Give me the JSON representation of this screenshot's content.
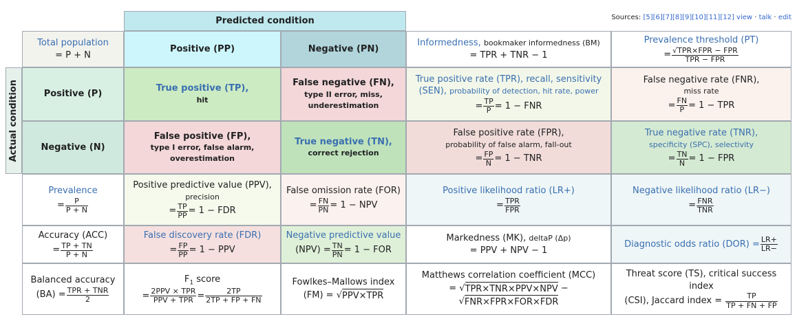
{
  "sources": {
    "label": "Sources:",
    "refs": "[5][6][7][8][9][10][11][12]",
    "view": "view",
    "talk": "talk",
    "edit": "edit"
  },
  "predicted_condition": "Predicted condition",
  "actual_condition": "Actual condition",
  "total_population": {
    "title": "Total population",
    "formula": "= P + N"
  },
  "pred_positive": "Positive (PP)",
  "pred_negative": "Negative (PN)",
  "informedness": {
    "title": "Informedness,",
    "sub": "bookmaker informedness (BM)",
    "formula": "= TPR + TNR − 1"
  },
  "prevalence_threshold": {
    "title": "Prevalence threshold (PT)",
    "lhs": "=",
    "num": "√TPR×FPR − FPR",
    "den": "TPR − FPR"
  },
  "actual_positive": "Positive (P)",
  "actual_negative": "Negative (N)",
  "tp": {
    "title": "True positive (TP),",
    "sub": "hit"
  },
  "fn": {
    "title": "False negative (FN),",
    "sub": "type II error, miss, underestimation"
  },
  "tpr": {
    "title": "True positive rate (TPR), recall, sensitivity",
    "title2": "(SEN),",
    "sub": "probability of detection, hit rate, power",
    "lhs": "=",
    "num": "TP",
    "den": "P",
    "rhs": "= 1 − FNR"
  },
  "fnr": {
    "title": "False negative rate (FNR),",
    "sub": "miss rate",
    "lhs": "=",
    "num": "FN",
    "den": "P",
    "rhs": "= 1 − TPR"
  },
  "fp": {
    "title": "False positive (FP),",
    "sub": "type I error, false alarm, overestimation"
  },
  "tn": {
    "title": "True negative (TN),",
    "sub": "correct rejection"
  },
  "fpr": {
    "title": "False positive rate (FPR),",
    "sub": "probability of false alarm, fall-out",
    "lhs": "=",
    "num": "FP",
    "den": "N",
    "rhs": "= 1 − TNR"
  },
  "tnr": {
    "title": "True negative rate (TNR),",
    "sub": "specificity (SPC), selectivity",
    "lhs": "=",
    "num": "TN",
    "den": "N",
    "rhs": "= 1 − FPR"
  },
  "prevalence": {
    "title": "Prevalence",
    "lhs": "=",
    "num": "P",
    "den": "P + N"
  },
  "ppv": {
    "title": "Positive predictive value (PPV),",
    "sub": "precision",
    "lhs": "=",
    "num": "TP",
    "den": "PP",
    "rhs": "= 1 − FDR"
  },
  "for": {
    "title": "False omission rate (FOR)",
    "lhs": "=",
    "num": "FN",
    "den": "PN",
    "rhs": "= 1 − NPV"
  },
  "lrp": {
    "title": "Positive likelihood ratio (LR+)",
    "lhs": "=",
    "num": "TPR",
    "den": "FPR"
  },
  "lrn": {
    "title": "Negative likelihood ratio (LR−)",
    "lhs": "=",
    "num": "FNR",
    "den": "TNR"
  },
  "acc": {
    "title": "Accuracy (ACC)",
    "lhs": "=",
    "num": "TP + TN",
    "den": "P + N"
  },
  "fdr": {
    "title": "False discovery rate (FDR)",
    "lhs": "=",
    "num": "FP",
    "den": "PP",
    "rhs": "= 1 − PPV"
  },
  "npv": {
    "title": "Negative predictive value",
    "pre": "(NPV) =",
    "num": "TN",
    "den": "PN",
    "rhs": "= 1 − FOR"
  },
  "mk": {
    "title": "Markedness (MK),",
    "sub": "deltaP (Δp)",
    "formula": "= PPV + NPV − 1"
  },
  "dor": {
    "title": "Diagnostic odds ratio (DOR) =",
    "num": "LR+",
    "den": "LR−"
  },
  "ba": {
    "title": "Balanced accuracy",
    "pre": "(BA) =",
    "num": "TPR + TNR",
    "den": "2"
  },
  "f1": {
    "title": "F",
    "subscript": "1",
    "title_end": " score",
    "lhs": "=",
    "num": "2PPV × TPR",
    "den": "PPV + TPR",
    "mid": "=",
    "num2": "2TP",
    "den2": "2TP + FP + FN"
  },
  "fm": {
    "title": "Fowlkes–Mallows index",
    "pre": "(FM) =",
    "sqrt": "√",
    "rad": "PPV×TPR"
  },
  "mcc": {
    "title": "Matthews correlation coefficient (MCC)",
    "l1pre": "=",
    "l1sqrt": "√",
    "l1rad": "TPR×TNR×PPV×NPV",
    "l1post": "−",
    "l2sqrt": "√",
    "l2rad": "FNR×FPR×FOR×FDR"
  },
  "ts": {
    "title": "Threat score (TS), critical success index",
    "pre": "(CSI), Jaccard index =",
    "num": "TP",
    "den": "TP + FN + FP"
  }
}
